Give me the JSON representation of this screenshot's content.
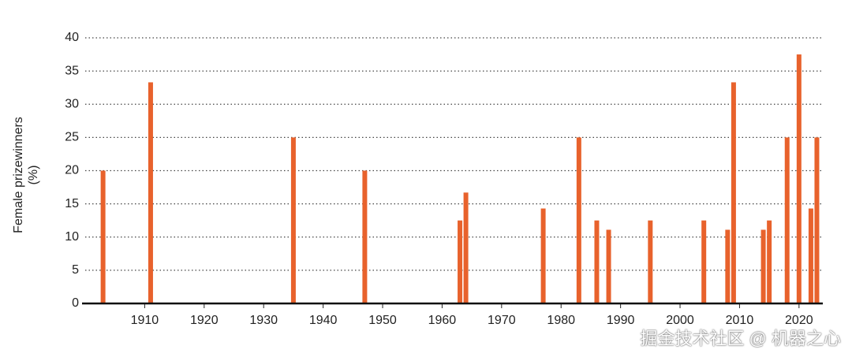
{
  "chart_data": {
    "type": "bar",
    "ylabel": "Female prizewinners (%)",
    "watermark": "掘金技术社区 @ 机器之心",
    "x": [
      1903,
      1911,
      1935,
      1947,
      1963,
      1964,
      1977,
      1983,
      1986,
      1988,
      1995,
      2004,
      2008,
      2009,
      2014,
      2015,
      2018,
      2020,
      2022,
      2023
    ],
    "values": [
      20,
      33.3,
      25,
      20,
      12.5,
      16.7,
      14.3,
      25,
      12.5,
      11.1,
      12.5,
      12.5,
      11.1,
      33.3,
      11.1,
      12.5,
      25,
      37.5,
      14.3,
      25
    ],
    "color": "#e8622c",
    "xlim": [
      1900,
      2024
    ],
    "xticks": [
      1910,
      1920,
      1930,
      1940,
      1950,
      1960,
      1970,
      1980,
      1990,
      2000,
      2010,
      2020
    ],
    "ylim": [
      0,
      40
    ],
    "yticks": [
      0,
      5,
      10,
      15,
      20,
      25,
      30,
      35,
      40
    ],
    "grid": true
  }
}
